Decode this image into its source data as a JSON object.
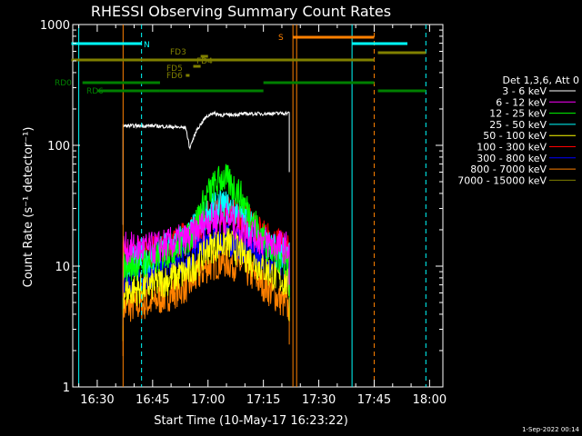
{
  "chart_data": {
    "type": "line",
    "title": "RHESSI Observing Summary Count Rates",
    "xlabel": "Start Time (10-May-17 16:23:22)",
    "ylabel": "Count Rate (s⁻¹ detector⁻¹)",
    "ylog": true,
    "ylim": [
      1,
      1000
    ],
    "xlim_minutes_of_day": [
      983.37,
      1083.6
    ],
    "x_ticks": [
      "16:30",
      "16:45",
      "17:00",
      "17:15",
      "17:30",
      "17:45",
      "18:00"
    ],
    "y_ticks": [
      "1",
      "10",
      "100",
      "1000"
    ],
    "legend_header": "Det 1,3,6, Att 0",
    "legend_position": "right",
    "series": [
      {
        "name": "3 - 6 keV",
        "color": "#ffffff",
        "x": [
          "16:37",
          "16:45",
          "16:54",
          "16:55",
          "16:57",
          "16:59",
          "17:01",
          "17:04",
          "17:10",
          "17:16",
          "17:22"
        ],
        "values": [
          145,
          145,
          140,
          95,
          135,
          165,
          185,
          178,
          182,
          183,
          185
        ]
      },
      {
        "name": "6 - 12 keV",
        "color": "#ff00ff",
        "x": [
          "16:37",
          "16:45",
          "16:55",
          "17:00",
          "17:05",
          "17:10",
          "17:15",
          "17:22"
        ],
        "values": [
          14,
          14,
          17,
          24,
          25,
          20,
          16,
          14
        ]
      },
      {
        "name": "12 - 25 keV",
        "color": "#00ff00",
        "x": [
          "16:37",
          "16:45",
          "16:55",
          "17:00",
          "17:04",
          "17:08",
          "17:12",
          "17:17",
          "17:22"
        ],
        "values": [
          10,
          11,
          17,
          40,
          55,
          42,
          25,
          13,
          11
        ]
      },
      {
        "name": "25 - 50 keV",
        "color": "#00ffff",
        "x": [
          "16:37",
          "16:45",
          "16:55",
          "17:00",
          "17:04",
          "17:08",
          "17:12",
          "17:17",
          "17:22"
        ],
        "values": [
          11,
          12,
          18,
          28,
          32,
          28,
          21,
          14,
          12
        ]
      },
      {
        "name": "50 - 100 keV",
        "color": "#ffff00",
        "x": [
          "16:37",
          "16:45",
          "16:55",
          "17:00",
          "17:05",
          "17:12",
          "17:22"
        ],
        "values": [
          6,
          7,
          9,
          14,
          16,
          11,
          7
        ]
      },
      {
        "name": "100 - 300 keV",
        "color": "#ff0000",
        "x": [
          "16:37",
          "16:45",
          "16:55",
          "17:00",
          "17:04",
          "17:08",
          "17:14",
          "17:22"
        ],
        "values": [
          12,
          13,
          18,
          26,
          30,
          27,
          19,
          13
        ]
      },
      {
        "name": "300 - 800 keV",
        "color": "#0000ff",
        "x": [
          "16:37",
          "16:45",
          "16:55",
          "17:00",
          "17:04",
          "17:09",
          "17:15",
          "17:22"
        ],
        "values": [
          8,
          9,
          12,
          16,
          17,
          15,
          12,
          9
        ]
      },
      {
        "name": "800 - 7000 keV",
        "color": "#ff8000",
        "x": [
          "16:37",
          "16:45",
          "16:55",
          "17:00",
          "17:04",
          "17:09",
          "17:15",
          "17:22"
        ],
        "values": [
          4.5,
          5,
          7,
          10,
          11,
          10,
          7,
          4.5
        ]
      },
      {
        "name": "7000 - 15000 keV",
        "color": "#808000",
        "x": [],
        "values": []
      }
    ],
    "flags": [
      {
        "label": "N",
        "color": "#00ffff",
        "segments": [
          [
            "16:23",
            "16:42"
          ],
          [
            "17:39",
            "17:54"
          ]
        ]
      },
      {
        "label": "S",
        "color": "#ff8000",
        "segments": [
          [
            "17:23",
            "17:45"
          ]
        ]
      },
      {
        "label": "FD3",
        "color": "#808000",
        "segments": [
          [
            "16:23",
            "17:45"
          ],
          [
            "17:46",
            "17:59"
          ]
        ]
      },
      {
        "label": "FD4",
        "color": "#808000",
        "segments": [
          [
            "16:58",
            "17:00"
          ]
        ]
      },
      {
        "label": "FD5",
        "color": "#808000",
        "segments": [
          [
            "16:56",
            "16:58"
          ]
        ]
      },
      {
        "label": "FD6",
        "color": "#808000",
        "segments": [
          [
            "16:54",
            "16:55"
          ]
        ]
      },
      {
        "label": "RD0",
        "color": "#008000",
        "segments": [
          [
            "16:26",
            "16:47"
          ],
          [
            "17:15",
            "17:45"
          ]
        ]
      },
      {
        "label": "RD6",
        "color": "#008000",
        "segments": [
          [
            "16:30",
            "16:47"
          ],
          [
            "16:47",
            "17:15"
          ],
          [
            "17:46",
            "17:59"
          ]
        ]
      }
    ],
    "footer_timestamp": "1-Sep-2022 00:14"
  }
}
